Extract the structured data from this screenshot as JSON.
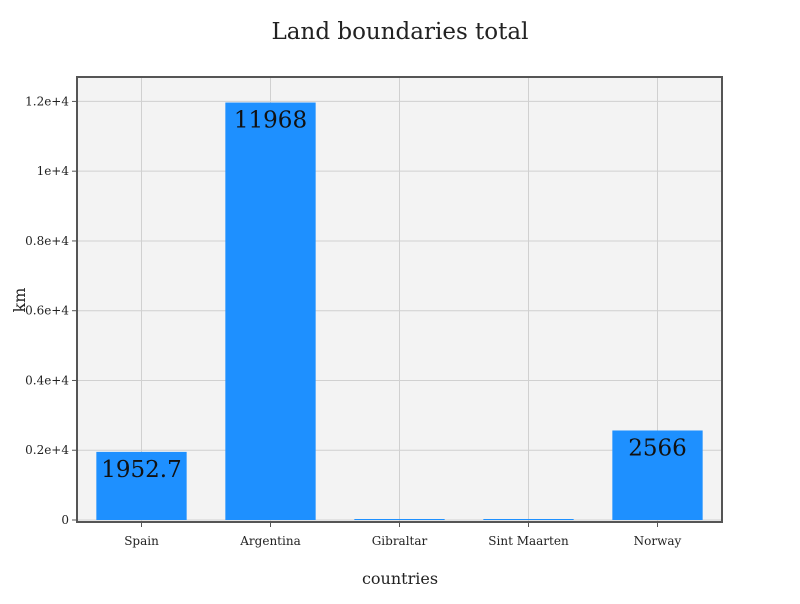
{
  "chart_data": {
    "type": "bar",
    "title": "Land boundaries total",
    "xlabel": "countries",
    "ylabel": "km",
    "categories": [
      "Spain",
      "Argentina",
      "Gibraltar",
      "Sint Maarten",
      "Norway"
    ],
    "values": [
      1952.7,
      11968,
      1.2,
      16,
      2566
    ],
    "data_labels": [
      "1952.7",
      "11968",
      "",
      "",
      "2566"
    ],
    "ylim": [
      0,
      12700
    ],
    "yticks": [
      0,
      2000,
      4000,
      6000,
      8000,
      10000,
      12000
    ],
    "ytick_labels": [
      "0",
      "0.2e+4",
      "0.4e+4",
      "0.6e+4",
      "0.8e+4",
      "1e+4",
      "1.2e+4"
    ],
    "grid": true,
    "legend": "none",
    "colors": {
      "bar": "#1e90ff",
      "plot_background": "#f3f3f3",
      "grid": "#d0d0d0",
      "frame": "#555555",
      "text": "#222222"
    }
  }
}
